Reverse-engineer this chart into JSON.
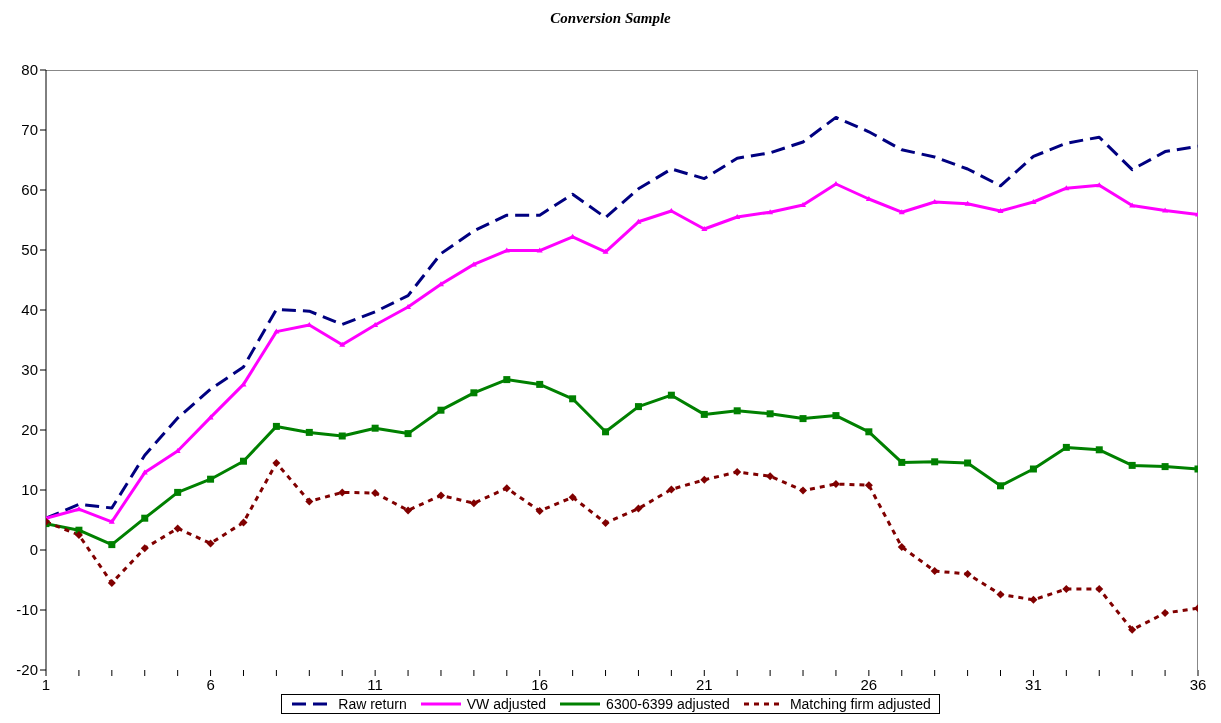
{
  "chart_data": {
    "type": "line",
    "title": "Conversion Sample",
    "x": [
      1,
      2,
      3,
      4,
      5,
      6,
      7,
      8,
      9,
      10,
      11,
      12,
      13,
      14,
      15,
      16,
      17,
      18,
      19,
      20,
      21,
      22,
      23,
      24,
      25,
      26,
      27,
      28,
      29,
      30,
      31,
      32,
      33,
      34,
      35,
      36
    ],
    "xlim": [
      1,
      36
    ],
    "xticks": [
      1,
      {
        "value": 2,
        "label": null
      },
      {
        "value": 3,
        "label": null
      },
      {
        "value": 4,
        "label": null
      },
      {
        "value": 5,
        "label": null
      },
      6,
      {
        "value": 7,
        "label": null
      },
      {
        "value": 8,
        "label": null
      },
      {
        "value": 9,
        "label": null
      },
      {
        "value": 10,
        "label": null
      },
      11,
      {
        "value": 12,
        "label": null
      },
      {
        "value": 13,
        "label": null
      },
      {
        "value": 14,
        "label": null
      },
      {
        "value": 15,
        "label": null
      },
      16,
      {
        "value": 17,
        "label": null
      },
      {
        "value": 18,
        "label": null
      },
      {
        "value": 19,
        "label": null
      },
      {
        "value": 20,
        "label": null
      },
      21,
      {
        "value": 22,
        "label": null
      },
      {
        "value": 23,
        "label": null
      },
      {
        "value": 24,
        "label": null
      },
      {
        "value": 25,
        "label": null
      },
      26,
      {
        "value": 27,
        "label": null
      },
      {
        "value": 28,
        "label": null
      },
      {
        "value": 29,
        "label": null
      },
      {
        "value": 30,
        "label": null
      },
      31,
      {
        "value": 32,
        "label": null
      },
      {
        "value": 33,
        "label": null
      },
      {
        "value": 34,
        "label": null
      },
      {
        "value": 35,
        "label": null
      },
      36
    ],
    "ylim": [
      -20,
      80
    ],
    "yticks": [
      -20,
      -10,
      0,
      10,
      20,
      30,
      40,
      50,
      60,
      70,
      80
    ],
    "grid": false,
    "legend": "bottom",
    "series": [
      {
        "name": "Raw return",
        "color": "#000080",
        "line_style": "dashed",
        "marker": "none",
        "values": [
          5.3,
          7.6,
          7.0,
          15.8,
          22.0,
          26.8,
          30.5,
          40.1,
          39.8,
          37.6,
          39.7,
          42.4,
          49.4,
          53.2,
          55.8,
          55.8,
          59.3,
          55.4,
          60.2,
          63.5,
          61.9,
          65.3,
          66.2,
          68.0,
          72.1,
          69.7,
          66.7,
          65.5,
          63.5,
          60.7,
          65.6,
          67.8,
          68.8,
          63.4,
          66.4,
          67.3
        ]
      },
      {
        "name": "VW adjusted",
        "color": "#ff00ff",
        "line_style": "solid",
        "marker": "triangle",
        "values": [
          5.3,
          6.8,
          4.7,
          12.9,
          16.5,
          22.1,
          27.6,
          36.4,
          37.5,
          34.2,
          37.5,
          40.5,
          44.3,
          47.6,
          49.9,
          49.9,
          52.2,
          49.7,
          54.7,
          56.5,
          53.5,
          55.5,
          56.3,
          57.5,
          61.0,
          58.5,
          56.3,
          58.0,
          57.7,
          56.5,
          58.0,
          60.3,
          60.8,
          57.4,
          56.6,
          55.9
        ]
      },
      {
        "name": "6300-6399 adjusted",
        "color": "#008000",
        "line_style": "solid",
        "marker": "square",
        "values": [
          4.4,
          3.3,
          0.9,
          5.3,
          9.6,
          11.8,
          14.8,
          20.6,
          19.6,
          19.0,
          20.3,
          19.4,
          23.3,
          26.2,
          28.4,
          27.6,
          25.2,
          19.7,
          23.9,
          25.8,
          22.6,
          23.2,
          22.7,
          21.9,
          22.4,
          19.7,
          14.6,
          14.7,
          14.5,
          10.7,
          13.5,
          17.1,
          16.7,
          14.1,
          13.9,
          13.5
        ]
      },
      {
        "name": "Matching firm adjusted",
        "color": "#800000",
        "line_style": "dotted",
        "marker": "diamond",
        "values": [
          4.7,
          2.5,
          -5.5,
          0.3,
          3.6,
          1.1,
          4.6,
          14.5,
          8.1,
          9.6,
          9.5,
          6.6,
          9.1,
          7.8,
          10.3,
          6.5,
          8.8,
          4.5,
          6.9,
          10.1,
          11.7,
          13.0,
          12.3,
          9.9,
          11.0,
          10.8,
          0.5,
          -3.5,
          -4.0,
          -7.4,
          -8.3,
          -6.5,
          -6.5,
          -13.3,
          -10.5,
          -9.7
        ]
      }
    ]
  }
}
